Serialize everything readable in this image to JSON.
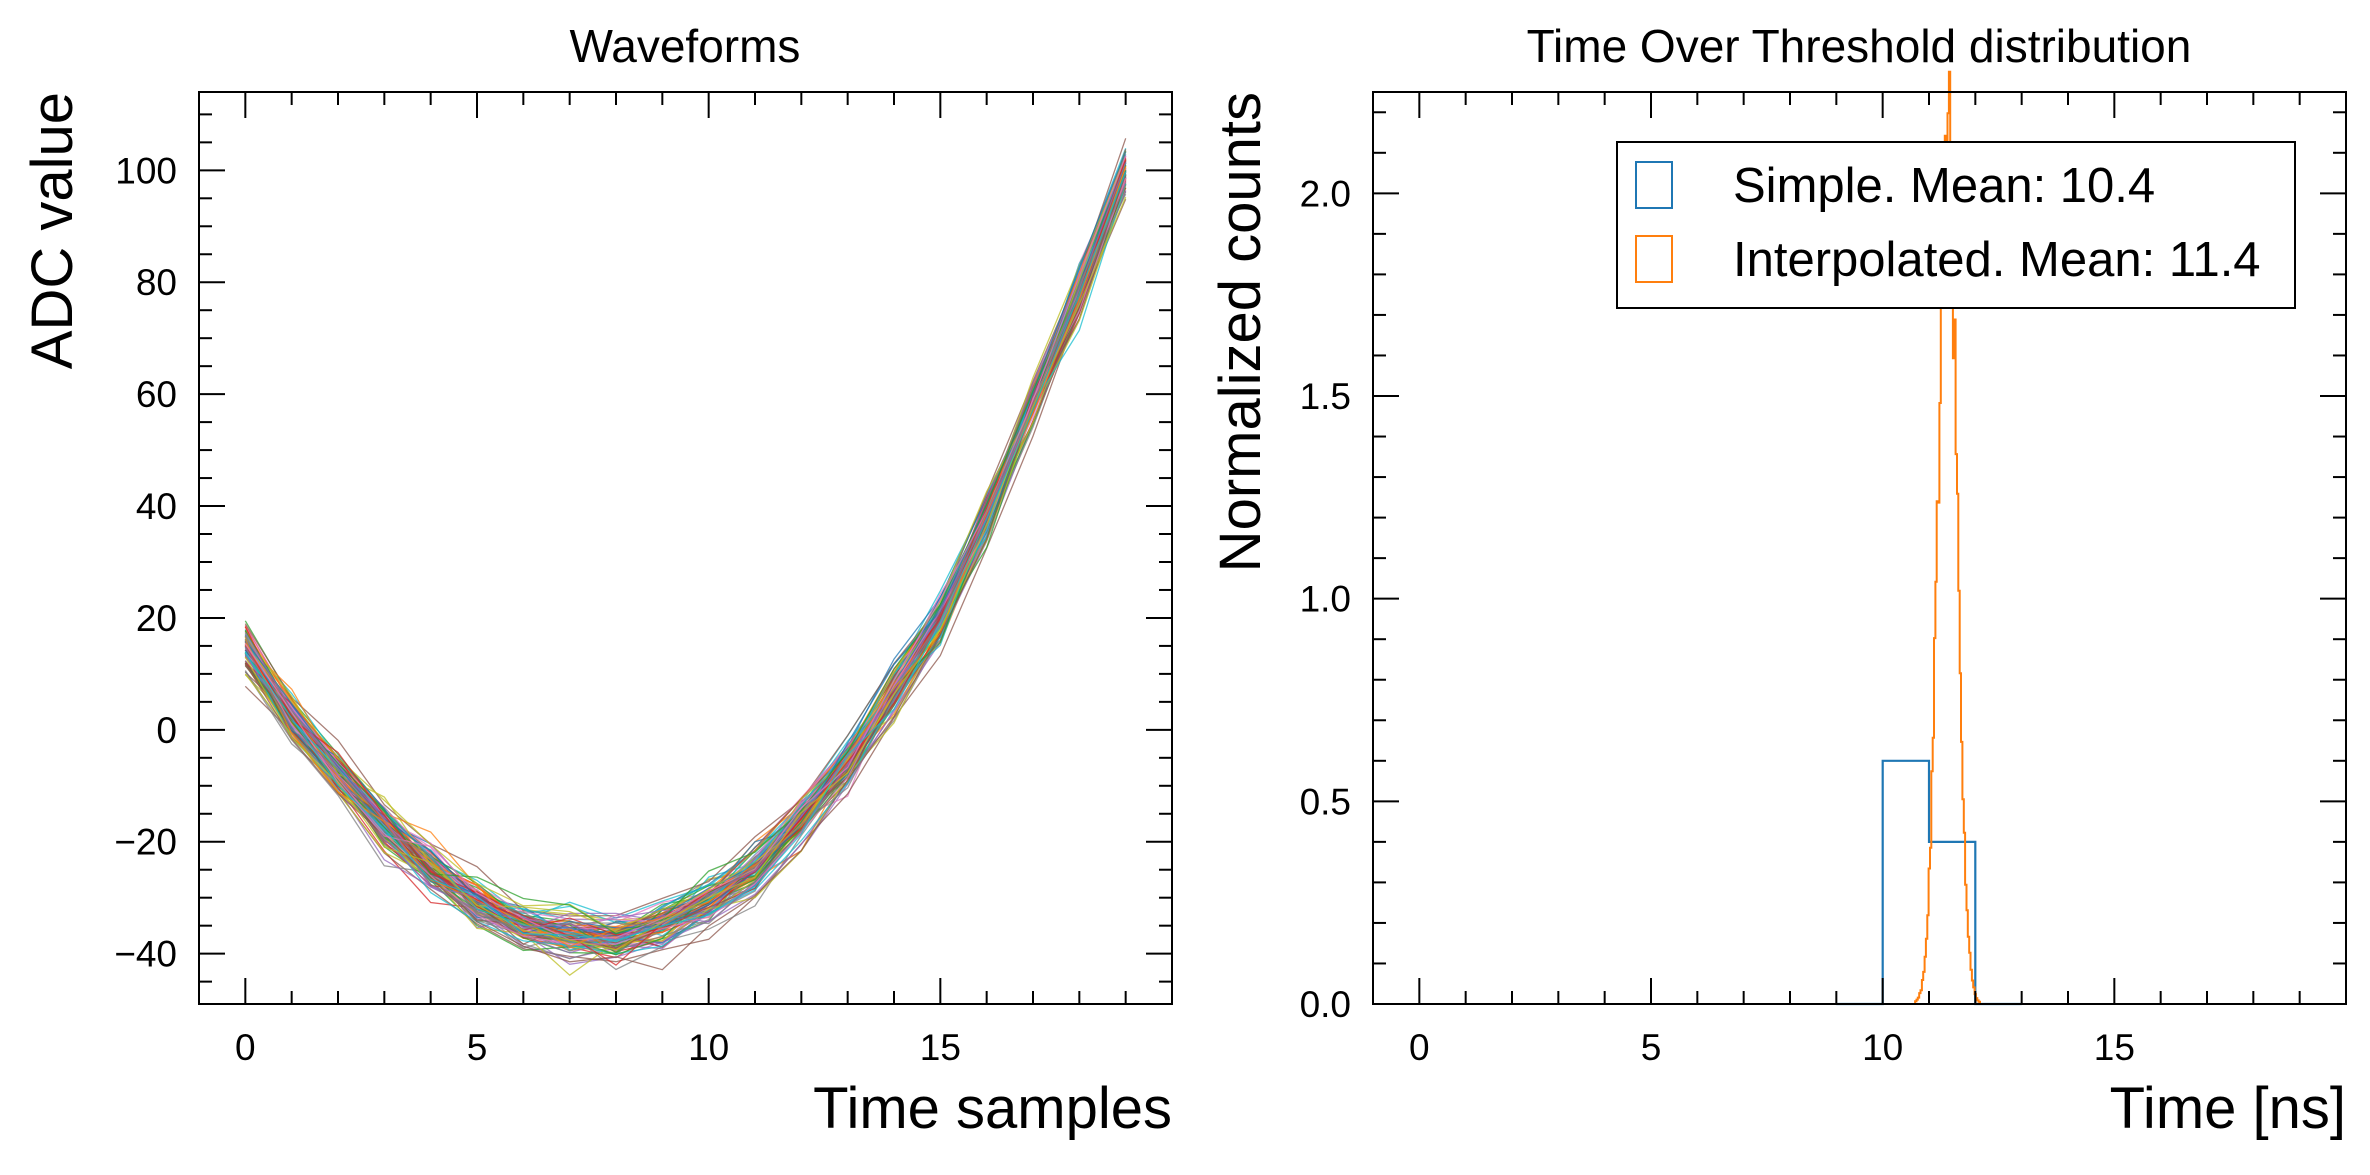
{
  "chart_data": [
    {
      "type": "line",
      "title": "Waveforms",
      "xlabel": "Time samples",
      "ylabel": "ADC value",
      "xlim": [
        -1,
        20
      ],
      "ylim": [
        -49,
        114
      ],
      "x_ticks": [
        0,
        5,
        10,
        15
      ],
      "x_tick_labels": [
        "0",
        "5",
        "10",
        "15"
      ],
      "y_ticks": [
        -40,
        -20,
        0,
        20,
        40,
        60,
        80,
        100
      ],
      "y_tick_labels": [
        "−40",
        "−20",
        "0",
        "20",
        "40",
        "60",
        "80",
        "100"
      ],
      "grid": false,
      "legend": "none",
      "x": [
        0,
        1,
        2,
        3,
        4,
        5,
        6,
        7,
        8,
        9,
        10,
        11,
        12,
        13,
        14,
        15,
        16,
        17,
        18,
        19
      ],
      "mean_waveform": [
        15,
        2,
        -8,
        -17,
        -25,
        -31,
        -35,
        -37,
        -37,
        -35,
        -31,
        -25,
        -16,
        -6,
        7,
        20,
        38,
        58,
        78,
        100
      ],
      "n_waveforms": 100,
      "series_colors": [
        "#1f77b4",
        "#ff7f0e",
        "#2ca02c",
        "#d62728",
        "#9467bd",
        "#8c564b",
        "#e377c2",
        "#7f7f7f",
        "#bcbd22",
        "#17becf"
      ]
    },
    {
      "type": "histogram",
      "title": "Time Over Threshold distribution",
      "xlabel": "Time [ns]",
      "ylabel": "Normalized counts",
      "xlim": [
        -1,
        20
      ],
      "ylim": [
        0,
        2.25
      ],
      "x_ticks": [
        0,
        5,
        10,
        15
      ],
      "x_tick_labels": [
        "0",
        "5",
        "10",
        "15"
      ],
      "y_ticks": [
        0.0,
        0.5,
        1.0,
        1.5,
        2.0
      ],
      "y_tick_labels": [
        "0.0",
        "0.5",
        "1.0",
        "1.5",
        "2.0"
      ],
      "grid": false,
      "legend": "top-right",
      "series": [
        {
          "name": "Simple. Mean: 10.4",
          "color": "#1f77b4",
          "bins": [
            {
              "x0": 9,
              "x1": 10,
              "value": 0.0
            },
            {
              "x0": 10,
              "x1": 11,
              "value": 0.6
            },
            {
              "x0": 11,
              "x1": 12,
              "value": 0.4
            },
            {
              "x0": 12,
              "x1": 13,
              "value": 0.0
            }
          ]
        },
        {
          "name": "Interpolated. Mean: 11.4",
          "color": "#ff7f0e",
          "mean": 11.4,
          "peak": 2.15,
          "x_range": [
            10.7,
            12.1
          ]
        }
      ]
    }
  ]
}
